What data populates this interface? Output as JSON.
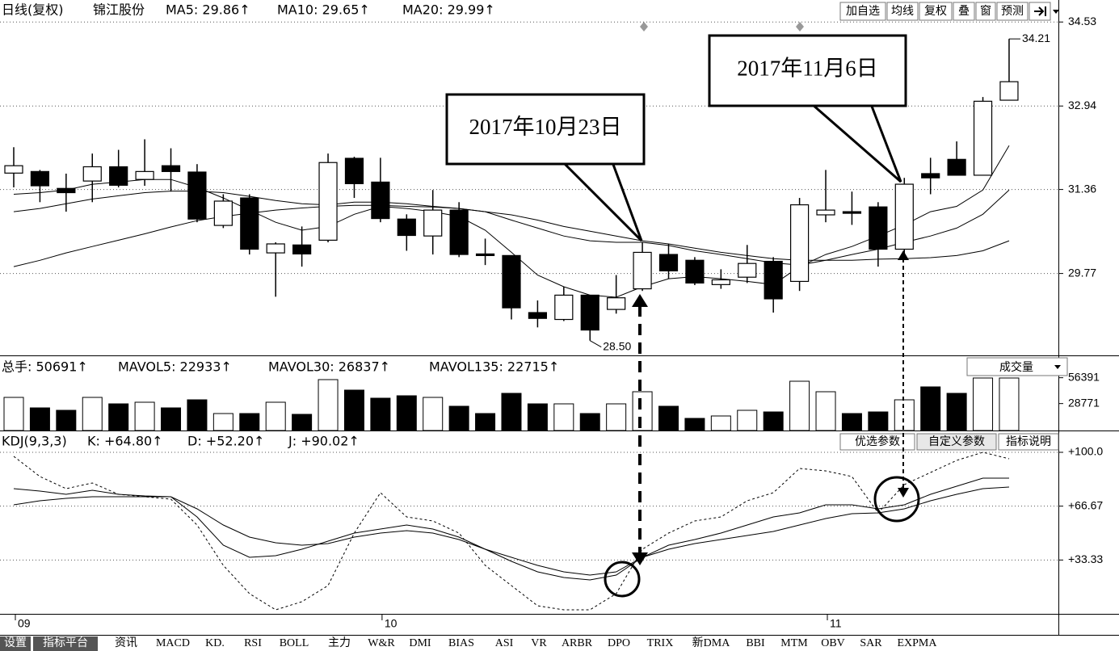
{
  "price_header": {
    "period": "日线(复权)",
    "stock": "锦江股份",
    "indicators": [
      "MA5: 29.86↑",
      "MA10: 29.65↑",
      "MA20: 29.99↑"
    ]
  },
  "toolbar": [
    "加自选",
    "均线",
    "复权",
    "叠",
    "窗",
    "预测"
  ],
  "volume_header": [
    "总手: 50691↑",
    "MAVOL5: 22933↑",
    "MAVOL30: 26837↑",
    "MAVOL135: 22715↑"
  ],
  "volume_selector": "成交量",
  "kdj_header": [
    "KDJ(9,3,3)",
    "K: +64.80↑",
    "D: +52.20↑",
    "J: +90.02↑"
  ],
  "kdj_buttons": [
    "优选参数",
    "自定义参数",
    "指标说明"
  ],
  "tabs": [
    "设置",
    "指标平台",
    "资讯",
    "MACD",
    "KD.",
    "RSI",
    "BOLL",
    "主力",
    "W&R",
    "DMI",
    "BIAS",
    "ASI",
    "VR",
    "ARBR",
    "DPO",
    "TRIX",
    "新DMA",
    "BBI",
    "MTM",
    "OBV",
    "SAR",
    "EXPMA"
  ],
  "chart_data": [
    {
      "type": "candlestick",
      "open": [
        31.67,
        31.7,
        31.38,
        31.52,
        31.79,
        31.55,
        31.81,
        31.69,
        30.68,
        31.2,
        30.16,
        30.31,
        30.4,
        31.95,
        31.5,
        30.8,
        30.48,
        30.97,
        30.14,
        30.11,
        29.03,
        28.9,
        29.36,
        29.09,
        29.48,
        30.13,
        30.02,
        29.56,
        29.7,
        30.0,
        29.62,
        30.88,
        30.94,
        31.03,
        30.23,
        31.66,
        31.93,
        31.63,
        33.05
      ],
      "high": [
        32.16,
        31.73,
        31.66,
        32.04,
        32.11,
        32.31,
        32.14,
        31.84,
        31.27,
        31.27,
        30.36,
        30.66,
        32.04,
        31.98,
        31.96,
        30.89,
        31.35,
        31.12,
        30.43,
        30.11,
        29.26,
        29.52,
        29.36,
        29.74,
        30.36,
        30.33,
        30.08,
        29.85,
        30.31,
        30.08,
        31.2,
        31.73,
        31.32,
        31.12,
        31.58,
        31.96,
        32.27,
        33.11,
        34.21
      ],
      "low": [
        31.4,
        31.12,
        30.94,
        31.12,
        31.4,
        31.43,
        31.32,
        30.74,
        30.63,
        30.13,
        29.33,
        29.9,
        30.36,
        31.2,
        30.74,
        30.2,
        30.13,
        30.08,
        29.93,
        28.9,
        28.75,
        28.87,
        28.5,
        29.01,
        29.44,
        29.67,
        29.55,
        29.48,
        29.59,
        29.03,
        29.44,
        30.74,
        30.69,
        29.9,
        30.13,
        31.27,
        31.63,
        31.63,
        33.05
      ],
      "close": [
        31.81,
        31.43,
        31.3,
        31.79,
        31.44,
        31.7,
        31.7,
        30.8,
        31.14,
        30.23,
        30.33,
        30.14,
        31.87,
        31.47,
        30.81,
        30.49,
        30.97,
        30.13,
        30.11,
        29.12,
        28.92,
        29.36,
        28.7,
        29.31,
        30.17,
        29.82,
        29.59,
        29.65,
        29.96,
        29.29,
        31.07,
        30.97,
        30.91,
        30.23,
        31.46,
        31.58,
        31.63,
        33.03,
        33.4
      ],
      "up_color": "#ffffff",
      "down_color": "#000000",
      "series": [
        {
          "color": "#000000",
          "values": [
            31.27,
            31.3,
            31.35,
            31.46,
            31.5,
            31.55,
            31.55,
            31.4,
            31.2,
            30.97,
            30.74,
            30.59,
            30.66,
            30.89,
            31.04,
            31.0,
            30.94,
            30.85,
            30.59,
            30.17,
            29.74,
            29.52,
            29.36,
            29.32,
            29.52,
            29.67,
            29.71,
            29.67,
            29.62,
            29.56,
            29.9,
            30.13,
            30.28,
            30.48,
            30.69,
            30.94,
            31.04,
            31.35,
            32.19
          ]
        },
        {
          "color": "#000000",
          "values": [
            30.94,
            31.0,
            31.09,
            31.18,
            31.24,
            31.3,
            31.33,
            31.33,
            31.3,
            31.23,
            31.15,
            31.09,
            31.07,
            31.12,
            31.12,
            31.09,
            31.04,
            31.0,
            30.94,
            30.78,
            30.63,
            30.48,
            30.39,
            30.36,
            30.36,
            30.3,
            30.2,
            30.13,
            30.05,
            29.97,
            29.93,
            30.02,
            30.13,
            30.23,
            30.36,
            30.48,
            30.63,
            30.89,
            31.35
          ]
        },
        {
          "color": "#000000",
          "values": [
            29.9,
            30.02,
            30.16,
            30.28,
            30.4,
            30.52,
            30.65,
            30.77,
            30.85,
            30.91,
            30.97,
            31.01,
            31.04,
            31.06,
            31.06,
            31.04,
            31.03,
            31.0,
            30.94,
            30.88,
            30.78,
            30.66,
            30.57,
            30.48,
            30.39,
            30.33,
            30.25,
            30.17,
            30.11,
            30.05,
            30.02,
            30.02,
            30.02,
            30.04,
            30.05,
            30.07,
            30.11,
            30.2,
            30.39
          ]
        }
      ],
      "low_marker": {
        "value": 28.5,
        "label": "28.50"
      },
      "high_marker": {
        "value": 34.21,
        "label": "34.21"
      },
      "annotations": [
        "2017年10月23日",
        "2017年11月6日"
      ],
      "ylim": [
        28.22,
        34.61
      ],
      "yticks": [
        34.53,
        32.94,
        31.36,
        29.77
      ],
      "grid": true
    },
    {
      "type": "bar",
      "values": [
        35383,
        24164,
        21575,
        35383,
        28479,
        30205,
        24164,
        32794,
        18123,
        18123,
        30205,
        17260,
        54369,
        43150,
        34520,
        37109,
        35383,
        25890,
        18123,
        39698,
        28479,
        28479,
        18123,
        28479,
        41424,
        25890,
        12945,
        15534,
        21575,
        19849,
        52643,
        41424,
        18123,
        19849,
        32794,
        46602,
        39698,
        56095,
        56095
      ],
      "ylim": [
        0,
        77670
      ],
      "yticks": [
        56391,
        28771
      ],
      "grid": false
    },
    {
      "type": "line",
      "categories": [
        "09",
        null,
        null,
        null,
        null,
        null,
        null,
        null,
        null,
        null,
        null,
        null,
        null,
        null,
        "10",
        null,
        null,
        null,
        null,
        null,
        null,
        null,
        null,
        null,
        null,
        null,
        null,
        null,
        null,
        null,
        null,
        "11",
        null,
        null,
        null,
        null,
        null,
        null,
        null
      ],
      "series": [
        {
          "color": "#000000",
          "style": "solid",
          "values": [
            77.5,
            76,
            74,
            76.5,
            74,
            73,
            72.5,
            60,
            42.5,
            35,
            36,
            40,
            45,
            50,
            52.5,
            55,
            52.5,
            47.5,
            40,
            32.5,
            26,
            22.5,
            21,
            24,
            35,
            42.5,
            46,
            50,
            55,
            60,
            62.5,
            67.5,
            67.5,
            65,
            67.5,
            74,
            79,
            84,
            84
          ]
        },
        {
          "color": "#000000",
          "style": "solid",
          "values": [
            67.5,
            70,
            71.5,
            72.5,
            72.5,
            72.5,
            72.5,
            65,
            55,
            47.5,
            44,
            42.5,
            43.5,
            47.5,
            50,
            51.5,
            50,
            46,
            40,
            35,
            30,
            26,
            24,
            26,
            35,
            40,
            43.5,
            46,
            48.5,
            51,
            55,
            59,
            62,
            62.5,
            65,
            70,
            74,
            77.5,
            78.5
          ]
        },
        {
          "color": "#000000",
          "style": "dashed",
          "values": [
            97.5,
            85,
            77.5,
            81,
            74,
            72.5,
            71,
            55,
            30,
            12.5,
            2.5,
            7.5,
            17.5,
            50,
            75,
            60,
            57.5,
            50,
            30,
            17.5,
            5,
            2.5,
            2.5,
            12.5,
            40,
            50,
            57.5,
            60,
            70,
            75,
            90,
            88.5,
            85,
            62.5,
            80,
            87.5,
            95,
            100,
            96
          ]
        }
      ],
      "ylim": [
        0,
        112.5
      ],
      "yticks": [
        {
          "value": 100,
          "label": "+100.0"
        },
        {
          "value": 66.67,
          "label": "+66.67"
        },
        {
          "value": 33.33,
          "label": "+33.33"
        }
      ],
      "grid": true
    }
  ]
}
